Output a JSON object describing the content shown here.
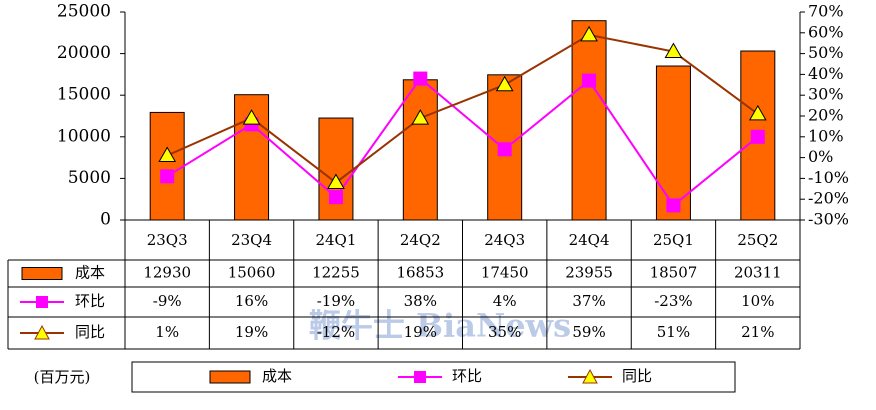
{
  "chart_data": {
    "type": "bar",
    "unit_label": "(百万元)",
    "watermark": "鞭牛士 BiaNews",
    "categories": [
      "23Q3",
      "23Q4",
      "24Q1",
      "24Q2",
      "24Q3",
      "24Q4",
      "25Q1",
      "25Q2"
    ],
    "series": [
      {
        "name": "成本",
        "type": "bar",
        "color": "#ff6600",
        "values": [
          12930,
          15060,
          12255,
          16853,
          17450,
          23955,
          18507,
          20311
        ]
      },
      {
        "name": "环比",
        "type": "line",
        "axis": "y2",
        "color": "#ff00ff",
        "values": [
          -9,
          16,
          -19,
          38,
          4,
          37,
          -23,
          10
        ],
        "value_labels": [
          "-9%",
          "16%",
          "-19%",
          "38%",
          "4%",
          "37%",
          "-23%",
          "10%"
        ]
      },
      {
        "name": "同比",
        "type": "line",
        "axis": "y2",
        "color": "#993300",
        "marker_color": "#ffff00",
        "values": [
          1,
          19,
          -12,
          19,
          35,
          59,
          51,
          21
        ],
        "value_labels": [
          "1%",
          "19%",
          "-12%",
          "19%",
          "35%",
          "59%",
          "51%",
          "21%"
        ]
      }
    ],
    "ylim": [
      0,
      25000
    ],
    "yticks": [
      0,
      5000,
      10000,
      15000,
      20000,
      25000
    ],
    "y2lim": [
      -30,
      70
    ],
    "y2ticks": [
      {
        "value": -30,
        "label": "-30%"
      },
      {
        "value": -20,
        "label": "-20%"
      },
      {
        "value": -10,
        "label": "-10%"
      },
      {
        "value": 0,
        "label": "0%"
      },
      {
        "value": 10,
        "label": "10%"
      },
      {
        "value": 20,
        "label": "20%"
      },
      {
        "value": 30,
        "label": "30%"
      },
      {
        "value": 40,
        "label": "40%"
      },
      {
        "value": 50,
        "label": "50%"
      },
      {
        "value": 60,
        "label": "60%"
      },
      {
        "value": 70,
        "label": "70%"
      }
    ],
    "grid": false
  }
}
